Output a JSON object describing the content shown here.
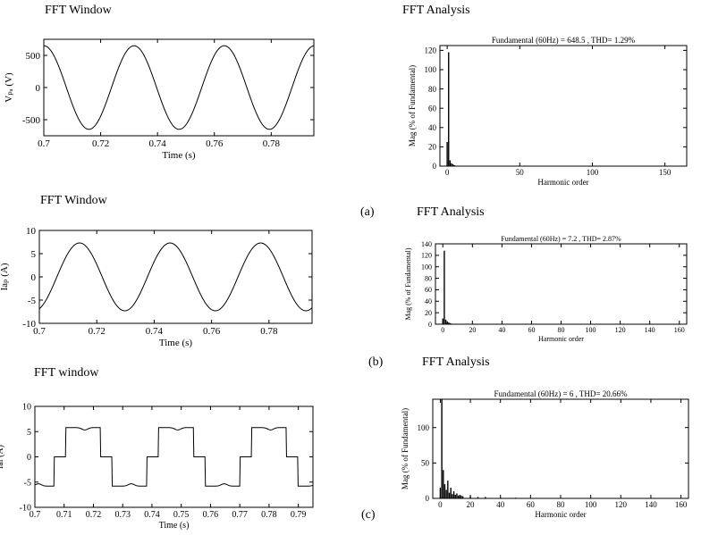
{
  "panels": {
    "a": {
      "left_title": "FFT Window",
      "right_title": "FFT Analysis",
      "letter": "(a)"
    },
    "b": {
      "left_title": "FFT Window",
      "right_title": "FFT Analysis",
      "letter": "(b)"
    },
    "c": {
      "left_title": "FFT window",
      "right_title": "FFT Analysis",
      "letter": "(c)"
    }
  },
  "chart_data": [
    {
      "id": "a-time",
      "type": "line",
      "xlabel": "Time (s)",
      "ylabel": "Vₚₐ (V)",
      "xlim": [
        0.7,
        0.795
      ],
      "ylim": [
        -750,
        750
      ],
      "xticks": [
        0.7,
        0.72,
        0.74,
        0.76,
        0.78
      ],
      "xticklabels": [
        "0.7",
        "0.72",
        "0.74",
        "0.76",
        "0.78"
      ],
      "yticks": [
        500,
        0,
        -500
      ],
      "yticklabels": [
        "500",
        "0",
        "-500"
      ],
      "waveform": {
        "shape": "sine",
        "amplitude": 650,
        "frequency_hz": 31.5,
        "peak_time_s": 0.7
      }
    },
    {
      "id": "a-fft",
      "type": "bar",
      "title": "Fundamental (60Hz) = 648.5 , THD= 1.29%",
      "xlabel": "Harmonic order",
      "ylabel": "Mag (% of Fundamental)",
      "xlim": [
        -5,
        165
      ],
      "ylim": [
        0,
        125
      ],
      "xticks": [
        0,
        50,
        100,
        150
      ],
      "xticklabels": [
        "0",
        "50",
        "100",
        "150"
      ],
      "yticks": [
        0,
        20,
        40,
        60,
        80,
        100,
        120
      ],
      "yticklabels": [
        "0",
        "20",
        "40",
        "60",
        "80",
        "100",
        "120"
      ],
      "bars": {
        "x": [
          0,
          1,
          2,
          3,
          4,
          5
        ],
        "values": [
          25,
          118,
          6,
          3,
          2,
          1
        ]
      }
    },
    {
      "id": "b-time",
      "type": "line",
      "xlabel": "Time (s)",
      "ylabel": "Iaₚ (A)",
      "xlim": [
        0.7,
        0.795
      ],
      "ylim": [
        -10,
        10
      ],
      "xticks": [
        0.7,
        0.72,
        0.74,
        0.76,
        0.78
      ],
      "xticklabels": [
        "0.7",
        "0.72",
        "0.74",
        "0.76",
        "0.78"
      ],
      "yticks": [
        10,
        5,
        0,
        -5,
        -10
      ],
      "yticklabels": [
        "10",
        "5",
        "0",
        "-5",
        "-10"
      ],
      "waveform": {
        "shape": "sine",
        "amplitude": 7.3,
        "frequency_hz": 31.7,
        "peak_time_s": 0.714
      }
    },
    {
      "id": "b-fft",
      "type": "bar",
      "title": "Fundamental (60Hz) = 7.2 , THD= 2.87%",
      "xlabel": "Harmonic order",
      "ylabel": "Mag (% of Fundamental)",
      "xlim": [
        -5,
        165
      ],
      "ylim": [
        0,
        140
      ],
      "xticks": [
        0,
        20,
        40,
        60,
        80,
        100,
        120,
        140,
        160
      ],
      "xticklabels": [
        "0",
        "20",
        "40",
        "60",
        "80",
        "100",
        "120",
        "140",
        "160"
      ],
      "yticks": [
        0,
        20,
        40,
        60,
        80,
        100,
        120,
        140
      ],
      "yticklabels": [
        "0",
        "20",
        "40",
        "60",
        "80",
        "100",
        "120",
        "140"
      ],
      "bars": {
        "x": [
          0,
          1,
          2,
          3,
          4,
          5,
          6
        ],
        "values": [
          10,
          128,
          8,
          5,
          3,
          2,
          1
        ]
      }
    },
    {
      "id": "c-time",
      "type": "line",
      "xlabel": "Time (s)",
      "ylabel": "Ial (A)",
      "xlim": [
        0.7,
        0.795
      ],
      "ylim": [
        -10,
        10
      ],
      "xticks": [
        0.7,
        0.71,
        0.72,
        0.73,
        0.74,
        0.75,
        0.76,
        0.77,
        0.78,
        0.79
      ],
      "xticklabels": [
        "0.7",
        "0.71",
        "0.72",
        "0.73",
        "0.74",
        "0.75",
        "0.76",
        "0.77",
        "0.78",
        "0.79"
      ],
      "yticks": [
        10,
        5,
        0,
        -5,
        -10
      ],
      "yticklabels": [
        "10",
        "5",
        "0",
        "-5",
        "-10"
      ],
      "waveform": {
        "shape": "quasi-square",
        "amplitude": 5.8,
        "frequency_hz": 31.5,
        "high_start_s": 0.7105
      }
    },
    {
      "id": "c-fft",
      "type": "bar",
      "title": "Fundamental (60Hz) = 6 , THD= 20.66%",
      "xlabel": "Harmonic order",
      "ylabel": "Mag (% of Fundamental)",
      "xlim": [
        -5,
        165
      ],
      "ylim": [
        0,
        140
      ],
      "xticks": [
        0,
        20,
        40,
        60,
        80,
        100,
        120,
        140,
        160
      ],
      "xticklabels": [
        "0",
        "20",
        "40",
        "60",
        "80",
        "100",
        "120",
        "140",
        "160"
      ],
      "yticks": [
        0,
        50,
        100
      ],
      "yticklabels": [
        "0",
        "50",
        "100"
      ],
      "bars": {
        "x": [
          0,
          1,
          2,
          3,
          4,
          5,
          6,
          7,
          8,
          9,
          10,
          11,
          12,
          13,
          14,
          15,
          20,
          25,
          30,
          40,
          50,
          60
        ],
        "values": [
          15,
          140,
          40,
          20,
          12,
          25,
          8,
          15,
          6,
          10,
          5,
          7,
          4,
          5,
          4,
          3,
          3,
          2,
          2,
          1.5,
          1,
          0.5
        ]
      }
    }
  ]
}
